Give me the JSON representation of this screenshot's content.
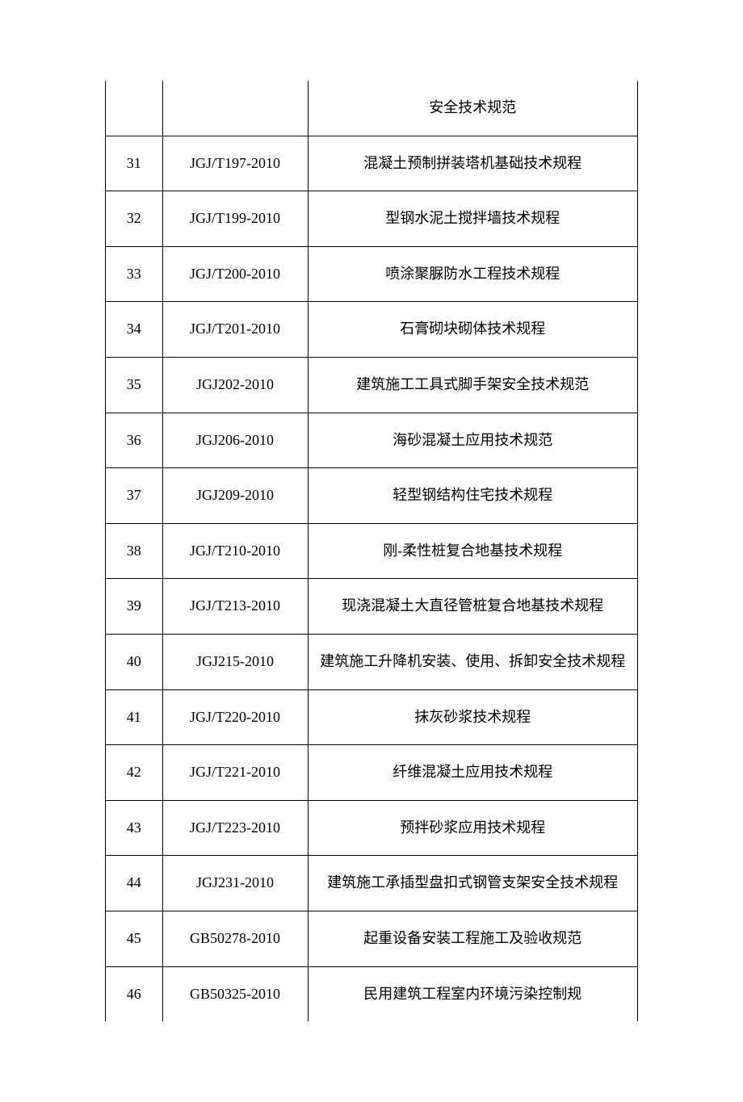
{
  "table": {
    "columns": {
      "num_width": 70,
      "code_width": 180
    },
    "header_continuation": {
      "num": "",
      "code": "",
      "title": "安全技术规范"
    },
    "rows": [
      {
        "num": "31",
        "code": "JGJ/T197-2010",
        "title": "混凝土预制拼装塔机基础技术规程"
      },
      {
        "num": "32",
        "code": "JGJ/T199-2010",
        "title": "型钢水泥土搅拌墙技术规程"
      },
      {
        "num": "33",
        "code": "JGJ/T200-2010",
        "title": "喷涂聚脲防水工程技术规程"
      },
      {
        "num": "34",
        "code": "JGJ/T201-2010",
        "title": "石膏砌块砌体技术规程"
      },
      {
        "num": "35",
        "code": "JGJ202-2010",
        "title": "建筑施工工具式脚手架安全技术规范"
      },
      {
        "num": "36",
        "code": "JGJ206-2010",
        "title": "海砂混凝土应用技术规范"
      },
      {
        "num": "37",
        "code": "JGJ209-2010",
        "title": "轻型钢结构住宅技术规程"
      },
      {
        "num": "38",
        "code": "JGJ/T210-2010",
        "title": "刚-柔性桩复合地基技术规程"
      },
      {
        "num": "39",
        "code": "JGJ/T213-2010",
        "title": "现浇混凝土大直径管桩复合地基技术规程"
      },
      {
        "num": "40",
        "code": "JGJ215-2010",
        "title": "建筑施工升降机安装、使用、拆卸安全技术规程"
      },
      {
        "num": "41",
        "code": "JGJ/T220-2010",
        "title": "抹灰砂浆技术规程"
      },
      {
        "num": "42",
        "code": "JGJ/T221-2010",
        "title": "纤维混凝土应用技术规程"
      },
      {
        "num": "43",
        "code": "JGJ/T223-2010",
        "title": "预拌砂浆应用技术规程"
      },
      {
        "num": "44",
        "code": "JGJ231-2010",
        "title": "建筑施工承插型盘扣式钢管支架安全技术规程"
      },
      {
        "num": "45",
        "code": "GB50278-2010",
        "title": "起重设备安装工程施工及验收规范"
      },
      {
        "num": "46",
        "code": "GB50325-2010",
        "title": "民用建筑工程室内环境污染控制规"
      }
    ],
    "styling": {
      "font_family": "SimSun",
      "font_size": 18,
      "text_color": "#000000",
      "border_color": "#000000",
      "background_color": "#ffffff",
      "outer_border_width": 1.5,
      "inner_border_width": 1,
      "cell_padding": 14,
      "line_height": 2.2
    }
  }
}
